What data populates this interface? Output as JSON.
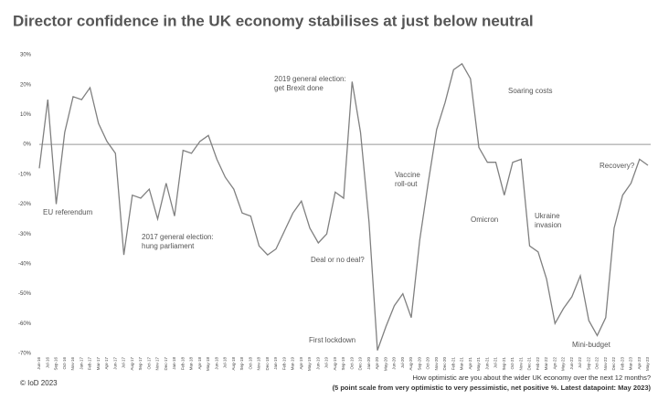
{
  "chart_data": {
    "type": "line",
    "title": "Director confidence in the UK economy stabilises at just below neutral",
    "categories": [
      "Jun-16",
      "Jul-16",
      "Sep-16",
      "Oct-16",
      "Nov-16",
      "Jan-17",
      "Feb-17",
      "Mar-17",
      "Apr-17",
      "Jun-17",
      "Jul-17",
      "Aug-17",
      "Sep-17",
      "Oct-17",
      "Nov-17",
      "Dec-17",
      "Jan-18",
      "Feb-18",
      "Mar-18",
      "Apr-18",
      "May-18",
      "Jun-18",
      "Jul-18",
      "Aug-18",
      "Sep-18",
      "Oct-18",
      "Nov-18",
      "Dec-18",
      "Jan-19",
      "Feb-19",
      "Mar-19",
      "Apr-19",
      "May-19",
      "Jun-19",
      "Jul-19",
      "Aug-19",
      "Sep-19",
      "Oct-19",
      "Dec-19",
      "Jan-20",
      "Apr-20",
      "May-20",
      "Jun-20",
      "Jul-20",
      "Aug-20",
      "Sep-20",
      "Oct-20",
      "Nov-20",
      "Dec-20",
      "Feb-21",
      "Mar-21",
      "Apr-21",
      "May-21",
      "Jun-21",
      "Jul-21",
      "Sep-21",
      "Oct-21",
      "Nov-21",
      "Dec-21",
      "Feb-22",
      "Mar-22",
      "Apr-22",
      "May-22",
      "Jun-22",
      "Jul-22",
      "Sep-22",
      "Oct-22",
      "Nov-22",
      "Dec-22",
      "Feb-23",
      "Mar-23",
      "Apr-23",
      "May-23"
    ],
    "values": [
      -8,
      15,
      -20,
      4,
      16,
      15,
      19,
      7,
      1,
      -3,
      -37,
      -17,
      -18,
      -15,
      -25,
      -13,
      -24,
      -2,
      -3,
      1,
      3,
      -5,
      -11,
      -15,
      -23,
      -24,
      -34,
      -37,
      -35,
      -29,
      -23,
      -19,
      -28,
      -33,
      -30,
      -16,
      -18,
      21,
      4,
      -26,
      -69,
      -61,
      -54,
      -50,
      -58,
      -32,
      -13,
      5,
      14,
      25,
      27,
      22,
      -1,
      -6,
      -6,
      -17,
      -6,
      -5,
      -34,
      -36,
      -45,
      -60,
      -55,
      -51,
      -44,
      -59,
      -64,
      -58,
      -28,
      -17,
      -13,
      -5,
      -7
    ],
    "color": "#808080",
    "ylim": [
      -70,
      30
    ],
    "yticks": [
      {
        "value": 30,
        "label": "30%"
      },
      {
        "value": 20,
        "label": "20%"
      },
      {
        "value": 10,
        "label": "10%"
      },
      {
        "value": 0,
        "label": "0%"
      },
      {
        "value": -10,
        "label": "-10%"
      },
      {
        "value": -20,
        "label": "-20%"
      },
      {
        "value": -30,
        "label": "-30%"
      },
      {
        "value": -40,
        "label": "-40%"
      },
      {
        "value": -50,
        "label": "-50%"
      },
      {
        "value": -60,
        "label": "-60%"
      },
      {
        "value": -70,
        "label": "-70%"
      }
    ],
    "annotations": [
      [
        "EU referendum"
      ],
      [
        "2017 general election:",
        "hung parliament"
      ],
      [
        "2019 general election:",
        "get Brexit done"
      ],
      [
        "Deal or no deal?"
      ],
      [
        "First lockdown"
      ],
      [
        "Vaccine",
        "roll-out"
      ],
      [
        "Soaring costs"
      ],
      [
        "Omicron"
      ],
      [
        "Ukraine",
        "invasion"
      ],
      [
        "Mini-budget"
      ],
      [
        "Recovery?"
      ]
    ],
    "copyright": "© IoD 2023",
    "footnote": [
      "How optimistic are you about the wider UK economy over the next 12 months?",
      "(5 point scale from very optimistic to very pessimistic, net positive %. Latest datapoint: May 2023)"
    ]
  }
}
